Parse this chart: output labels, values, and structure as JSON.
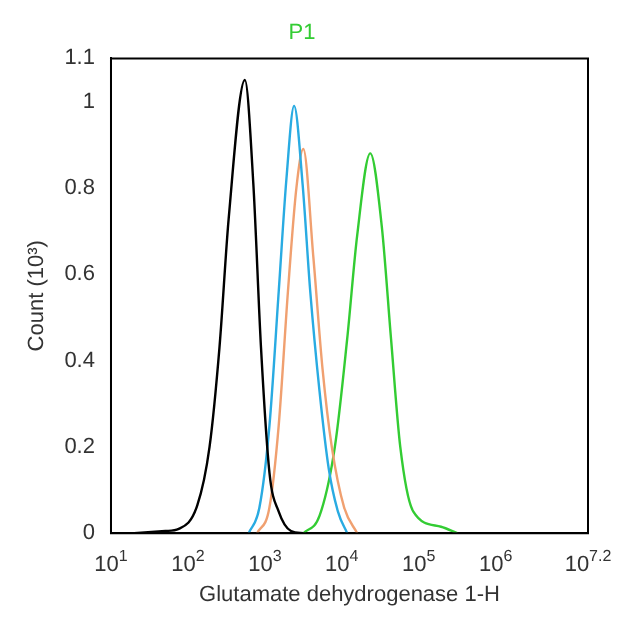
{
  "chart_data": {
    "type": "line",
    "title": "P1",
    "xlabel": "Glutamate dehydrogenase 1-H",
    "ylabel": "Count (10³)",
    "log": "x",
    "grid": false,
    "legend": false,
    "marker": "none",
    "line_style": "solid",
    "xlim": [
      10,
      15848932
    ],
    "ylim": [
      0,
      1.1
    ],
    "xticks": [
      {
        "value": 10,
        "label": "10$^{1}$"
      },
      {
        "value": 100,
        "label": "10$^{2}$"
      },
      {
        "value": 1000,
        "label": "10$^{3}$"
      },
      {
        "value": 10000,
        "label": "10$^{4}$"
      },
      {
        "value": 100000,
        "label": "10$^{5}$"
      },
      {
        "value": 1000000,
        "label": "10$^{6}$"
      },
      {
        "value": 15848932,
        "label": "10$^{7.2}$"
      }
    ],
    "yticks": [
      0,
      0.2,
      0.4,
      0.6,
      0.8,
      1,
      1.1
    ],
    "series": [
      {
        "color": "#000000",
        "x": [
          20,
          51,
          76,
          132,
          191,
          257,
          339,
          550,
          708,
          891,
          1148,
          1514,
          2188,
          3162
        ],
        "values": [
          0,
          0.005,
          0.01,
          0.064,
          0.2,
          0.43,
          0.73,
          1.05,
          0.81,
          0.43,
          0.14,
          0.05,
          0.005,
          0
        ]
      },
      {
        "color": "#29abe2",
        "x": [
          617,
          851,
          1148,
          1514,
          1905,
          2399,
          3090,
          3890,
          5129,
          6761,
          8913,
          11749
        ],
        "values": [
          0,
          0.06,
          0.25,
          0.56,
          0.82,
          0.99,
          0.81,
          0.56,
          0.33,
          0.15,
          0.05,
          0
        ]
      },
      {
        "color": "#f0a070",
        "x": [
          794,
          1148,
          1514,
          1995,
          2570,
          3162,
          4266,
          5623,
          7413,
          10715,
          15849
        ],
        "values": [
          0,
          0.06,
          0.25,
          0.56,
          0.8,
          0.89,
          0.64,
          0.38,
          0.2,
          0.06,
          0
        ]
      },
      {
        "color": "#33cc33",
        "x": [
          3162,
          5129,
          8128,
          11749,
          15849,
          23442,
          33113,
          43652,
          57544,
          85114,
          194984,
          316228
        ],
        "values": [
          0,
          0.04,
          0.2,
          0.45,
          0.69,
          0.88,
          0.71,
          0.45,
          0.2,
          0.05,
          0.015,
          0
        ]
      }
    ]
  }
}
